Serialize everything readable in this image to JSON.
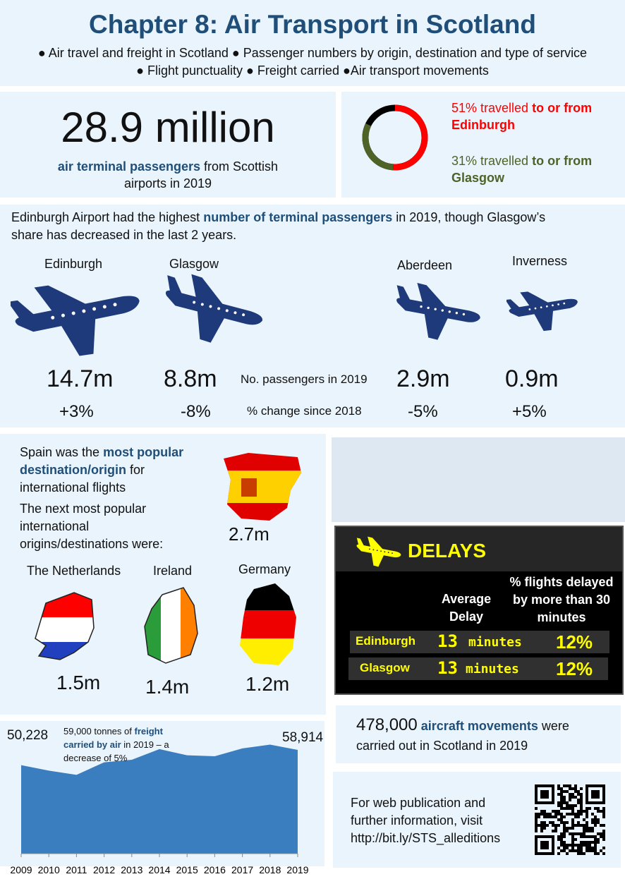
{
  "header": {
    "title": "Chapter 8: Air Transport in Scotland",
    "topics_line1": "● Air travel and freight in Scotland ● Passenger numbers by origin, destination and type of service",
    "topics_line2": "● Flight punctuality ● Freight carried ●Air transport movements"
  },
  "passengers": {
    "total": "28.9 million",
    "label_bold": "air terminal passengers",
    "label_rest": " from Scottish",
    "label_line2": "airports in 2019"
  },
  "share": {
    "edinburgh_pre": "51% travelled ",
    "edinburgh_bold": "to or from Edinburgh",
    "glasgow_pre": "31% travelled ",
    "glasgow_bold": "to or from Glasgow",
    "edinburgh_pct": 51,
    "glasgow_pct": 31,
    "colors": {
      "edinburgh": "#ff0000",
      "glasgow": "#4f6228",
      "other": "#000000"
    }
  },
  "airports": {
    "intro_pre": "Edinburgh Airport had the highest ",
    "intro_bold": "number of terminal passengers",
    "intro_post": " in 2019, though Glasgow’s",
    "intro_line2": "share has decreased in the last 2 years.",
    "row_label_passengers": "No. passengers in 2019",
    "row_label_change": "% change since 2018",
    "items": [
      {
        "name": "Edinburgh",
        "passengers": "14.7m",
        "change": "+3%"
      },
      {
        "name": "Glasgow",
        "passengers": "8.8m",
        "change": "-8%"
      },
      {
        "name": "Aberdeen",
        "passengers": "2.9m",
        "change": "-5%"
      },
      {
        "name": "Inverness",
        "passengers": "0.9m",
        "change": "+5%"
      }
    ]
  },
  "international": {
    "spain_pre": "Spain was the ",
    "spain_bold": "most popular destination/origin",
    "spain_post": " for international flights",
    "next": "The next most popular international origins/destinations were:",
    "spain_value": "2.7m",
    "countries": [
      {
        "name": "The Netherlands",
        "value": "1.5m"
      },
      {
        "name": "Ireland",
        "value": "1.4m"
      },
      {
        "name": "Germany",
        "value": "1.2m"
      }
    ]
  },
  "delays": {
    "title": "DELAYS",
    "col1": "Average Delay",
    "col2": "% flights delayed by more than 30 minutes",
    "rows": [
      {
        "airport": "Edinburgh",
        "avg": "13",
        "unit": "minutes",
        "pct": "12%"
      },
      {
        "airport": "Glasgow",
        "avg": "13",
        "unit": "minutes",
        "pct": "12%"
      }
    ]
  },
  "movements": {
    "value": "478,000",
    "bold": "aircraft movements",
    "post": " were",
    "line2": "carried out in Scotland in 2019"
  },
  "web": {
    "line1": "For web publication and",
    "line2": "further information, visit",
    "url": "http://bit.ly/STS_alleditions"
  },
  "chart_data": {
    "type": "area",
    "title": "",
    "xlabel": "",
    "ylabel": "",
    "x": [
      "2009",
      "2010",
      "2011",
      "2012",
      "2013",
      "2014",
      "2015",
      "2016",
      "2017",
      "2018",
      "2019"
    ],
    "values": [
      50228,
      47150,
      44750,
      51850,
      53300,
      59350,
      55870,
      55330,
      59750,
      61900,
      58914
    ],
    "data_labels": {
      "first": "50,228",
      "last": "58,914"
    },
    "annotation_pre": "59,000 tonnes of ",
    "annotation_bold": "freight carried by air",
    "annotation_post": " in 2019 – a decrease of 5%",
    "color": "#3a7ebf",
    "ylim": [
      0,
      62000
    ],
    "grid": false
  }
}
